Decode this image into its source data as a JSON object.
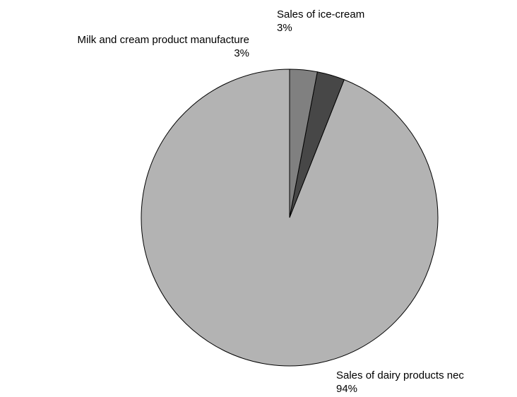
{
  "chart_data": {
    "type": "pie",
    "title": "",
    "start": "top",
    "direction": "clockwise",
    "slices": [
      {
        "label": "Sales of dairy products nec",
        "value": 94,
        "display": "94%",
        "color": "#b3b3b3"
      },
      {
        "label": "Milk and cream product manufacture",
        "value": 3,
        "display": "3%",
        "color": "#474747"
      },
      {
        "label": "Sales of ice-cream",
        "value": 3,
        "display": "3%",
        "color": "#808080"
      }
    ],
    "edge_color": "#000000"
  }
}
